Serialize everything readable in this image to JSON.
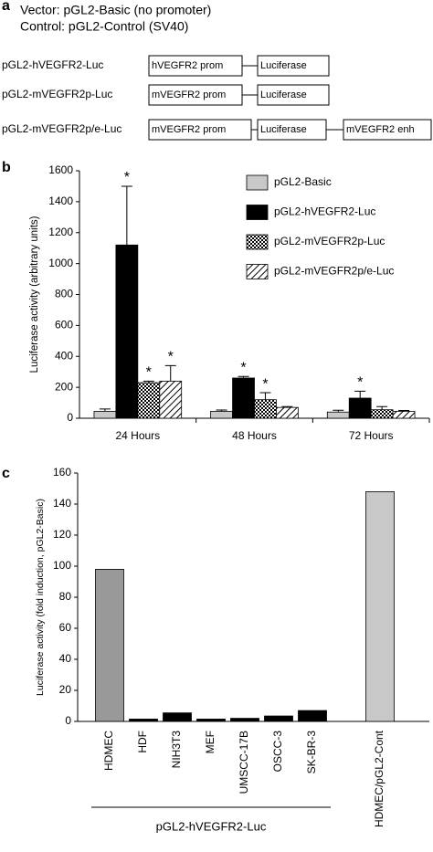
{
  "panel_a": {
    "label": "a",
    "lines": [
      "Vector: pGL2-Basic (no promoter)",
      "Control: pGL2-Control (SV40)"
    ],
    "constructs": [
      {
        "name": "pGL2-hVEGFR2-Luc",
        "boxes": [
          "hVEGFR2 prom",
          "Luciferase"
        ]
      },
      {
        "name": "pGL2-mVEGFR2p-Luc",
        "boxes": [
          "mVEGFR2 prom",
          "Luciferase"
        ]
      },
      {
        "name": "pGL2-mVEGFR2p/e-Luc",
        "boxes": [
          "mVEGFR2 prom",
          "Luciferase",
          "mVEGFR2 enh"
        ]
      }
    ]
  },
  "chart_data": [
    {
      "type": "bar",
      "panel_label": "b",
      "ylabel": "Luciferase activity (arbitrary units)",
      "categories": [
        "24 Hours",
        "48 Hours",
        "72 Hours"
      ],
      "ylim": [
        0,
        1600
      ],
      "yticks": [
        0,
        200,
        400,
        600,
        800,
        1000,
        1200,
        1400,
        1600
      ],
      "legend": "upper right",
      "series": [
        {
          "name": "pGL2-Basic",
          "color": "#c8c8c8",
          "values": [
            45,
            45,
            40
          ],
          "errors": [
            15,
            8,
            12
          ]
        },
        {
          "name": "pGL2-hVEGFR2-Luc",
          "color": "#000000",
          "values": [
            1120,
            260,
            130
          ],
          "errors": [
            380,
            10,
            45
          ],
          "annotations": [
            "*",
            "*",
            "*"
          ]
        },
        {
          "name": "pGL2-mVEGFR2p-Luc",
          "color": "#000000",
          "pattern": "crosshatch",
          "values": [
            230,
            120,
            55
          ],
          "errors": [
            10,
            45,
            20
          ],
          "annotations": [
            "*",
            "*",
            null
          ]
        },
        {
          "name": "pGL2-mVEGFR2p/e-Luc",
          "color": "#000000",
          "pattern": "diagonal",
          "values": [
            240,
            70,
            45
          ],
          "errors": [
            100,
            5,
            5
          ],
          "annotations": [
            "*",
            null,
            null
          ]
        }
      ]
    },
    {
      "type": "bar",
      "panel_label": "c",
      "ylabel": "Luciferase activity (fold induction, pGL2-Basic)",
      "categories": [
        "HDMEC",
        "HDF",
        "NIH3T3",
        "MEF",
        "UMSCC-17B",
        "OSCC-3",
        "SK-BR-3",
        "HDMEC/pGL2-Cont"
      ],
      "values": [
        98,
        1.5,
        5.5,
        1.5,
        2,
        3.5,
        7,
        148
      ],
      "colors": [
        "#999999",
        "#000000",
        "#000000",
        "#000000",
        "#000000",
        "#000000",
        "#000000",
        "#c8c8c8"
      ],
      "ylim": [
        0,
        160
      ],
      "yticks": [
        0,
        20,
        40,
        60,
        80,
        100,
        120,
        140,
        160
      ],
      "group_label": "pGL2-hVEGFR2-Luc"
    }
  ]
}
